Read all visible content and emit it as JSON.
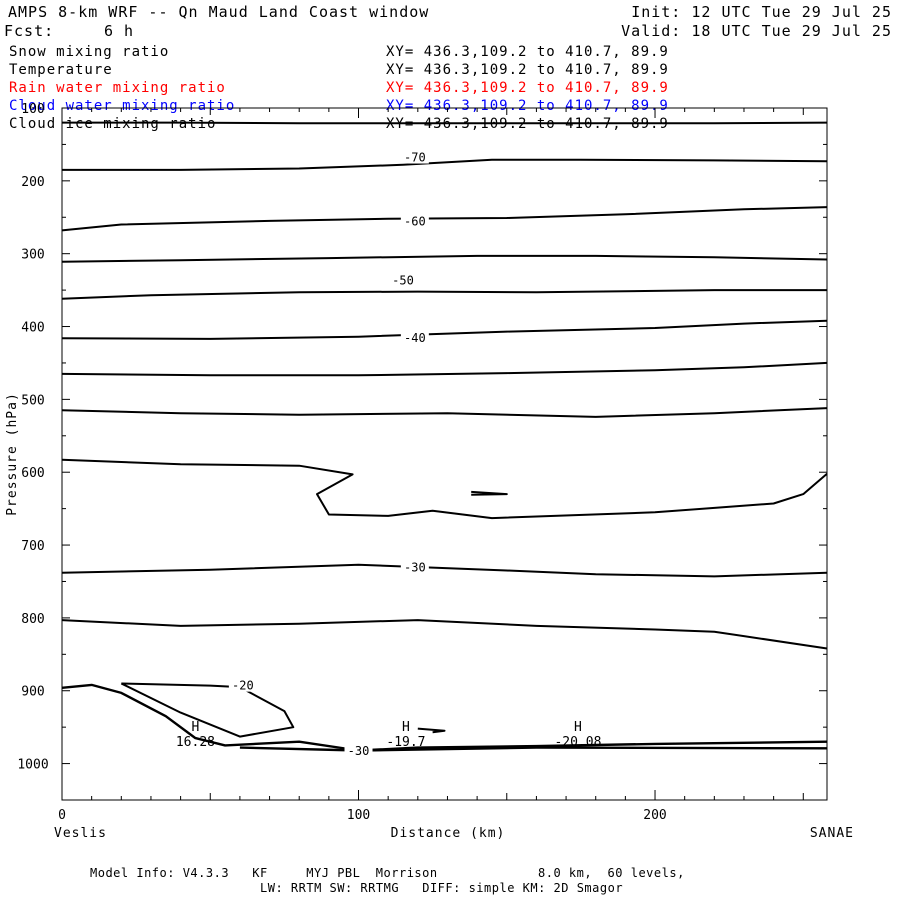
{
  "header": {
    "title": "AMPS 8-km WRF -- Qn Maud Land Coast window",
    "init": "Init: 12 UTC Tue 29 Jul 25",
    "fcst_label": "Fcst:",
    "fcst_value": "6 h",
    "valid": "Valid: 18 UTC Tue 29 Jul 25"
  },
  "fields": [
    {
      "name": "Snow mixing ratio",
      "xy": "XY= 436.3,109.2 to 410.7, 89.9",
      "color": "#000000"
    },
    {
      "name": "Temperature",
      "xy": "XY= 436.3,109.2 to 410.7, 89.9",
      "color": "#000000"
    },
    {
      "name": "Rain water mixing ratio",
      "xy": "XY= 436.3,109.2 to 410.7, 89.9",
      "color": "#ff0000"
    },
    {
      "name": "Cloud water mixing ratio",
      "xy": "XY= 436.3,109.2 to 410.7, 89.9",
      "color": "#0000ff"
    },
    {
      "name": "Cloud ice mixing ratio",
      "xy": "XY= 436.3,109.2 to 410.7, 89.9",
      "color": "#000000"
    }
  ],
  "chart_data": {
    "type": "line",
    "ylabel": "Pressure (hPa)",
    "xlabel": "Distance (km)",
    "xlim": [
      0,
      258
    ],
    "ylim": [
      1050,
      100
    ],
    "y_inverted": true,
    "grid": false,
    "x_ticks": [
      {
        "value": 0,
        "label": "0"
      },
      {
        "value": 100,
        "label": "100"
      },
      {
        "value": 200,
        "label": "200"
      }
    ],
    "y_ticks": [
      {
        "value": 100,
        "label": "100"
      },
      {
        "value": 200,
        "label": "200"
      },
      {
        "value": 300,
        "label": "300"
      },
      {
        "value": 400,
        "label": "400"
      },
      {
        "value": 500,
        "label": "500"
      },
      {
        "value": 600,
        "label": "600"
      },
      {
        "value": 700,
        "label": "700"
      },
      {
        "value": 800,
        "label": "800"
      },
      {
        "value": 900,
        "label": "900"
      },
      {
        "value": 1000,
        "label": "1000"
      }
    ],
    "left_endpoint": "Veslis",
    "right_endpoint": "SANAE",
    "series": [
      {
        "x": [
          0,
          40,
          80,
          110,
          140,
          180,
          220,
          258
        ],
        "y": [
          120,
          120,
          121,
          121,
          121,
          121,
          121,
          120
        ]
      },
      {
        "x": [
          0,
          40,
          80,
          115,
          145,
          175,
          220,
          258
        ],
        "y": [
          185,
          185,
          183,
          178,
          171,
          171,
          172,
          173
        ]
      },
      {
        "x": [
          0,
          20,
          70,
          110,
          150,
          190,
          230,
          258
        ],
        "y": [
          268,
          260,
          255,
          252,
          251,
          246,
          239,
          236
        ]
      },
      {
        "x": [
          0,
          40,
          90,
          140,
          180,
          220,
          258
        ],
        "y": [
          311,
          309,
          306,
          303,
          303,
          305,
          308
        ]
      },
      {
        "x": [
          0,
          30,
          80,
          120,
          160,
          220,
          258
        ],
        "y": [
          362,
          357,
          353,
          352,
          353,
          350,
          350
        ]
      },
      {
        "x": [
          0,
          50,
          100,
          150,
          200,
          230,
          258
        ],
        "y": [
          416,
          417,
          414,
          407,
          402,
          396,
          392
        ]
      },
      {
        "x": [
          0,
          50,
          100,
          150,
          200,
          230,
          258
        ],
        "y": [
          465,
          467,
          467,
          464,
          460,
          456,
          450
        ]
      },
      {
        "x": [
          0,
          40,
          80,
          130,
          180,
          220,
          258
        ],
        "y": [
          515,
          519,
          521,
          519,
          524,
          519,
          512
        ]
      },
      {
        "x": [
          0,
          40,
          80,
          98,
          86,
          90,
          110,
          125,
          145,
          200,
          240,
          250,
          258
        ],
        "y": [
          583,
          589,
          591,
          603,
          630,
          658,
          660,
          653,
          663,
          655,
          643,
          630,
          602
        ]
      },
      {
        "x": [
          138,
          150,
          138
        ],
        "y": [
          627,
          630,
          631
        ]
      },
      {
        "x": [
          0,
          50,
          100,
          150,
          180,
          220,
          258
        ],
        "y": [
          738,
          734,
          727,
          735,
          740,
          743,
          738
        ]
      },
      {
        "x": [
          0,
          40,
          80,
          120,
          160,
          200,
          220,
          258
        ],
        "y": [
          803,
          811,
          808,
          803,
          811,
          816,
          819,
          842
        ]
      },
      {
        "x": [
          0,
          10,
          20,
          35,
          45,
          55,
          80,
          100,
          120,
          160,
          200,
          258
        ],
        "y": [
          896,
          892,
          903,
          935,
          965,
          975,
          970,
          982,
          978,
          976,
          973,
          970
        ]
      },
      {
        "x": [
          20,
          50,
          60,
          75,
          78,
          60,
          40,
          20
        ],
        "y": [
          890,
          893,
          895,
          928,
          950,
          963,
          930,
          890
        ]
      },
      {
        "x": [
          60,
          100,
          160,
          258
        ],
        "y": [
          978,
          982,
          978,
          979
        ]
      },
      {
        "x": [
          120,
          129,
          125
        ],
        "y": [
          952,
          955,
          957
        ]
      }
    ],
    "contour_labels": [
      {
        "x": 119,
        "y": 168,
        "label": "-70"
      },
      {
        "x": 119,
        "y": 256,
        "label": "-60"
      },
      {
        "x": 115,
        "y": 337,
        "label": "-50"
      },
      {
        "x": 119,
        "y": 416,
        "label": "-40"
      },
      {
        "x": 119,
        "y": 731,
        "label": "-30"
      },
      {
        "x": 61,
        "y": 893,
        "label": "-20"
      },
      {
        "x": 100,
        "y": 983,
        "label": "-30"
      }
    ],
    "annotations": [
      {
        "marker": "H",
        "value": "16.28",
        "x": 45
      },
      {
        "marker": "H",
        "value": "-19.7",
        "x": 116
      },
      {
        "marker": "H",
        "value": "-20.08",
        "x": 174
      }
    ]
  },
  "model_info": {
    "line1": "Model Info: V4.3.3   KF     MYJ PBL  Morrison             8.0 km,  60 levels,",
    "line2": "LW: RRTM SW: RRTMG   DIFF: simple KM: 2D Smagor"
  }
}
